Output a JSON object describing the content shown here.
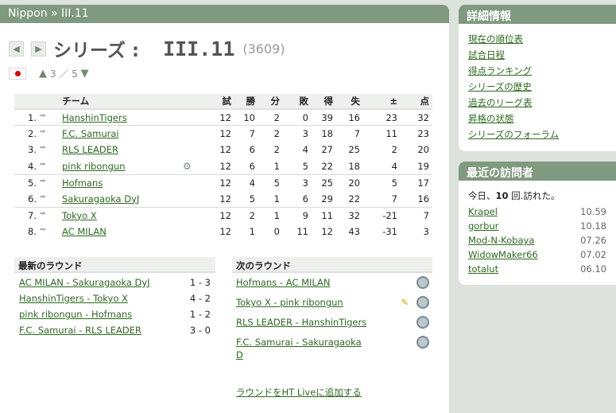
{
  "breadcrumb": "Nippon » III.11",
  "title": {
    "label": "シリーズ :",
    "series": "III.11",
    "id": "(3609)"
  },
  "level": {
    "up": "3",
    "sep": "／",
    "down": "5"
  },
  "table": {
    "headers": [
      "チーム",
      "試",
      "勝",
      "分",
      "敗",
      "得",
      "失",
      "±",
      "点"
    ],
    "rows": [
      {
        "rank": "1.",
        "team": "HanshinTigers",
        "v": [
          "12",
          "10",
          "2",
          "0",
          "39",
          "16",
          "23",
          "32"
        ]
      },
      {
        "rank": "2.",
        "team": "F.C. Samurai",
        "v": [
          "12",
          "7",
          "2",
          "3",
          "18",
          "7",
          "11",
          "23"
        ]
      },
      {
        "rank": "3.",
        "team": "RLS LEADER",
        "v": [
          "12",
          "6",
          "2",
          "4",
          "27",
          "25",
          "2",
          "20"
        ]
      },
      {
        "rank": "4.",
        "team": "pink ribongun",
        "v": [
          "12",
          "6",
          "1",
          "5",
          "22",
          "18",
          "4",
          "19"
        ],
        "icon": "bot-icon"
      },
      {
        "rank": "5.",
        "team": "Hofmans",
        "v": [
          "12",
          "4",
          "5",
          "3",
          "25",
          "20",
          "5",
          "17"
        ]
      },
      {
        "rank": "6.",
        "team": "Sakuragaoka DyJ",
        "v": [
          "12",
          "5",
          "1",
          "6",
          "29",
          "22",
          "7",
          "16"
        ]
      },
      {
        "rank": "7.",
        "team": "Tokyo X",
        "v": [
          "12",
          "2",
          "1",
          "9",
          "11",
          "32",
          "-21",
          "7"
        ]
      },
      {
        "rank": "8.",
        "team": "AC  MILAN ",
        "v": [
          "12",
          "1",
          "0",
          "11",
          "12",
          "43",
          "-31",
          "3"
        ]
      }
    ]
  },
  "latest": {
    "title": "最新のラウンド",
    "matches": [
      {
        "match": "AC  MILAN   - Sakuragaoka DyJ",
        "score": "1 - 3"
      },
      {
        "match": "HanshinTigers - Tokyo X",
        "score": "4 - 2"
      },
      {
        "match": "pink ribongun - Hofmans",
        "score": "1 - 2"
      },
      {
        "match": "F.C. Samurai - RLS LEADER",
        "score": "3 - 0"
      }
    ]
  },
  "next": {
    "title": "次のラウンド",
    "matches": [
      {
        "match": "Hofmans - AC  MILAN "
      },
      {
        "match": "Tokyo X - pink ribongun"
      },
      {
        "match": "RLS LEADER - HanshinTigers"
      },
      {
        "match": "F.C. Samurai - Sakuragaoka D"
      }
    ],
    "add_live": "ラウンドをHT Liveに追加する"
  },
  "details": {
    "title": "詳細情報",
    "links": [
      "現在の順位表",
      "試合日程",
      "得点ランキング",
      "シリーズの歴史",
      "過去のリーグ表",
      "昇格の状態",
      "シリーズのフォーラム"
    ]
  },
  "visitors": {
    "title": "最近の訪問者",
    "summary_pre": "今日、",
    "count": "10",
    "summary_post": " 回.訪れた。",
    "list": [
      {
        "name": "Krapel",
        "time": "10.59"
      },
      {
        "name": "gorbur",
        "time": "10.18"
      },
      {
        "name": "Mod-N-Kobaya",
        "time": "07.26"
      },
      {
        "name": "WidowMaker66",
        "time": "07.02"
      },
      {
        "name": "totalut",
        "time": "06.10"
      }
    ]
  },
  "colors": {
    "header": "#7f9a7f",
    "link": "#2d6a1f",
    "flag_red": "#dd0000"
  }
}
